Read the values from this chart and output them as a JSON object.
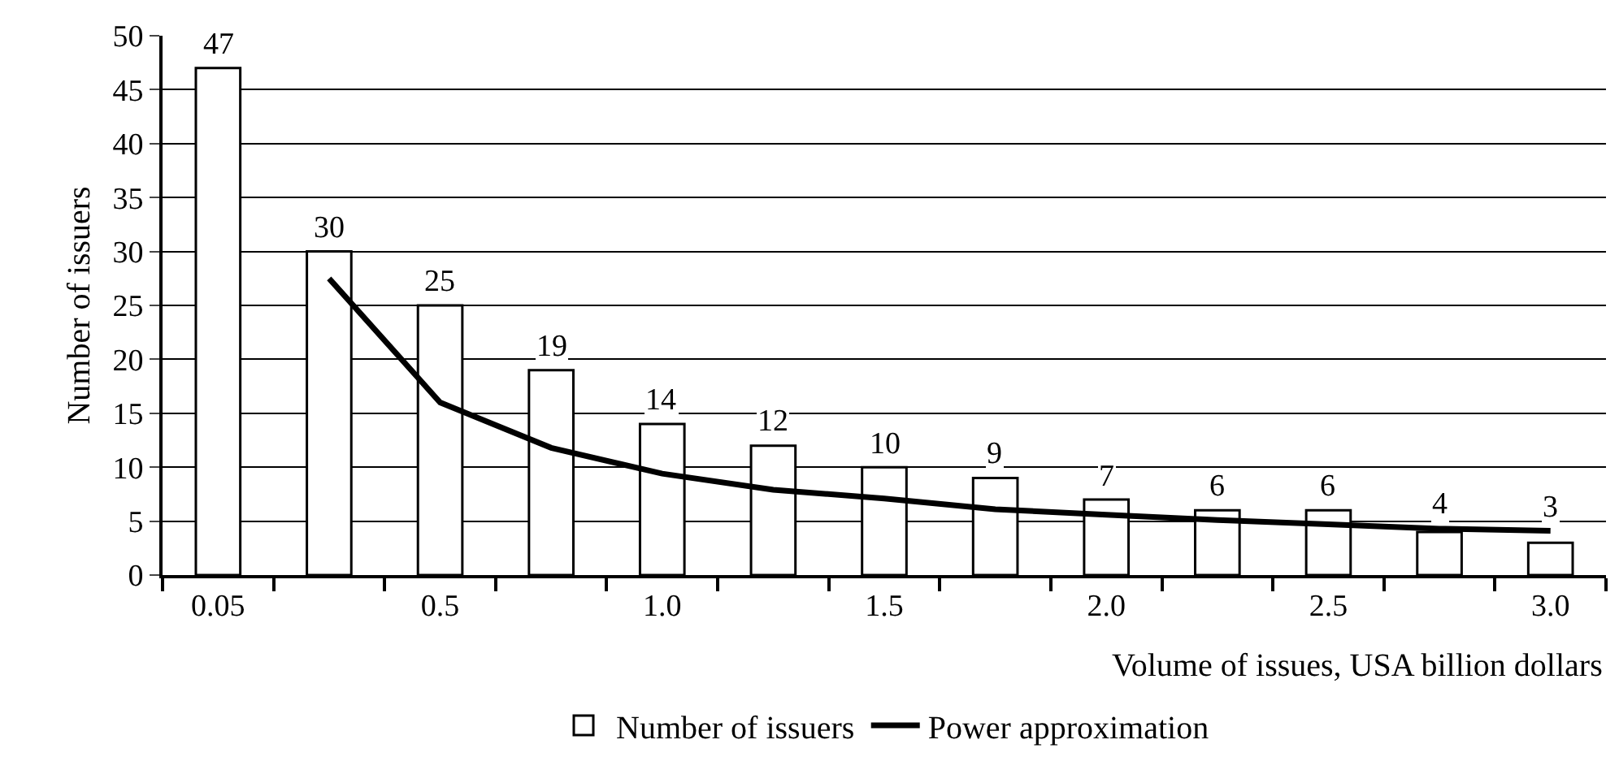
{
  "chart_data": {
    "type": "bar",
    "xlabel": "Volume of issues, USA billion dollars",
    "ylabel": "Number of issuers",
    "categories": [
      "0.05",
      null,
      "0.5",
      null,
      "1.0",
      null,
      "1.5",
      null,
      "2.0",
      null,
      "2.5",
      null,
      "3.0"
    ],
    "series": [
      {
        "name": "Number of issuers",
        "color": "#ffffff",
        "values": [
          47,
          30,
          25,
          19,
          14,
          12,
          10,
          9,
          7,
          6,
          6,
          4,
          3
        ],
        "data_labels": true
      },
      {
        "name": "Power approximation",
        "type": "line",
        "color": "#000000",
        "values": [
          null,
          27.5,
          16,
          11.8,
          9.4,
          7.9,
          7.1,
          6.1,
          5.6,
          5.1,
          4.7,
          4.3,
          4.1
        ],
        "marker": "none",
        "line_style": "solid"
      }
    ],
    "ylim": [
      0,
      50
    ],
    "yticks": [
      0,
      5,
      10,
      15,
      20,
      25,
      30,
      35,
      40,
      45,
      50
    ],
    "grid": "y",
    "legend": "bottom"
  }
}
